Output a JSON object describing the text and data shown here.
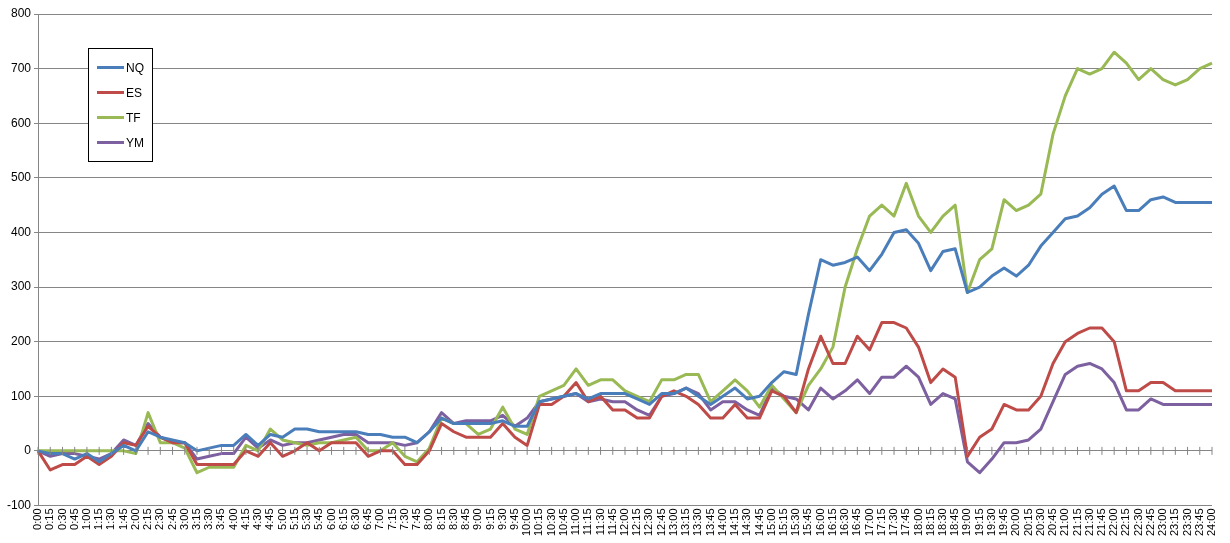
{
  "chart_data": {
    "type": "line",
    "categories": [
      "0:00",
      "0:15",
      "0:30",
      "0:45",
      "1:00",
      "1:15",
      "1:30",
      "1:45",
      "2:00",
      "2:15",
      "2:30",
      "2:45",
      "3:00",
      "3:15",
      "3:30",
      "3:45",
      "4:00",
      "4:15",
      "4:30",
      "4:45",
      "5:00",
      "5:15",
      "5:30",
      "5:45",
      "6:00",
      "6:15",
      "6:30",
      "6:45",
      "7:00",
      "7:15",
      "7:30",
      "7:45",
      "8:00",
      "8:15",
      "8:30",
      "8:45",
      "9:00",
      "9:15",
      "9:30",
      "9:45",
      "10:00",
      "10:15",
      "10:30",
      "10:45",
      "11:00",
      "11:15",
      "11:30",
      "11:45",
      "12:00",
      "12:15",
      "12:30",
      "12:45",
      "13:00",
      "13:15",
      "13:30",
      "13:45",
      "14:00",
      "14:15",
      "14:30",
      "14:45",
      "15:00",
      "15:15",
      "15:30",
      "15:45",
      "16:00",
      "16:15",
      "16:30",
      "16:45",
      "17:00",
      "17:15",
      "17:30",
      "17:45",
      "18:00",
      "18:15",
      "18:30",
      "18:45",
      "19:00",
      "19:15",
      "19:30",
      "19:45",
      "20:00",
      "20:15",
      "20:30",
      "20:45",
      "21:00",
      "21:15",
      "21:30",
      "21:45",
      "22:00",
      "22:15",
      "22:30",
      "22:45",
      "23:00",
      "23:15",
      "23:30",
      "23:45",
      "24:00"
    ],
    "series": [
      {
        "name": "NQ",
        "color": "#4a7ebb",
        "values": [
          0,
          -5,
          -5,
          -15,
          -5,
          -20,
          -5,
          10,
          0,
          35,
          25,
          20,
          15,
          0,
          5,
          10,
          10,
          30,
          10,
          30,
          25,
          40,
          40,
          35,
          35,
          35,
          35,
          30,
          30,
          25,
          25,
          15,
          35,
          60,
          50,
          50,
          50,
          50,
          55,
          45,
          45,
          90,
          95,
          100,
          105,
          95,
          105,
          105,
          105,
          95,
          85,
          105,
          105,
          115,
          100,
          85,
          100,
          115,
          95,
          100,
          125,
          145,
          140,
          250,
          350,
          340,
          345,
          355,
          330,
          360,
          400,
          405,
          380,
          330,
          365,
          370,
          290,
          300,
          320,
          335,
          320,
          340,
          375,
          400,
          425,
          430,
          445,
          470,
          485,
          440,
          440,
          460,
          465,
          455,
          455,
          455,
          455
        ]
      },
      {
        "name": "ES",
        "color": "#be4b48",
        "values": [
          0,
          -35,
          -25,
          -25,
          -10,
          -25,
          -10,
          15,
          10,
          45,
          25,
          15,
          15,
          -25,
          -25,
          -25,
          -25,
          0,
          -10,
          15,
          -10,
          0,
          15,
          0,
          15,
          15,
          15,
          -10,
          0,
          0,
          -25,
          -25,
          0,
          50,
          35,
          25,
          25,
          25,
          50,
          25,
          10,
          85,
          85,
          100,
          125,
          90,
          100,
          75,
          75,
          60,
          60,
          100,
          110,
          100,
          85,
          60,
          60,
          85,
          60,
          60,
          110,
          100,
          70,
          150,
          210,
          160,
          160,
          210,
          185,
          235,
          235,
          225,
          190,
          125,
          150,
          135,
          -10,
          25,
          40,
          85,
          75,
          75,
          100,
          160,
          200,
          215,
          225,
          225,
          200,
          110,
          110,
          125,
          125,
          110,
          110,
          110,
          110
        ]
      },
      {
        "name": "TF",
        "color": "#98b954",
        "values": [
          0,
          0,
          0,
          0,
          0,
          0,
          0,
          0,
          -5,
          70,
          15,
          15,
          5,
          -40,
          -30,
          -30,
          -30,
          10,
          0,
          40,
          20,
          15,
          10,
          15,
          15,
          20,
          25,
          0,
          0,
          15,
          -10,
          -20,
          5,
          60,
          50,
          50,
          30,
          40,
          80,
          40,
          30,
          100,
          110,
          120,
          150,
          120,
          130,
          130,
          110,
          100,
          90,
          130,
          130,
          140,
          140,
          90,
          110,
          130,
          110,
          80,
          120,
          95,
          70,
          120,
          150,
          190,
          300,
          370,
          430,
          450,
          430,
          490,
          430,
          400,
          430,
          450,
          290,
          350,
          370,
          460,
          440,
          450,
          470,
          580,
          650,
          700,
          690,
          700,
          730,
          710,
          680,
          700,
          680,
          670,
          680,
          700,
          710
        ]
      },
      {
        "name": "YM",
        "color": "#7d60a0",
        "values": [
          0,
          -10,
          -5,
          -5,
          -10,
          -15,
          -5,
          20,
          10,
          50,
          25,
          15,
          15,
          -15,
          -10,
          -5,
          -5,
          25,
          5,
          20,
          10,
          15,
          15,
          20,
          25,
          30,
          30,
          15,
          15,
          15,
          10,
          15,
          35,
          70,
          50,
          55,
          55,
          55,
          65,
          45,
          60,
          90,
          95,
          100,
          105,
          90,
          95,
          90,
          90,
          75,
          65,
          100,
          105,
          115,
          105,
          75,
          90,
          90,
          75,
          65,
          115,
          100,
          95,
          75,
          115,
          95,
          110,
          130,
          105,
          135,
          135,
          155,
          135,
          85,
          105,
          95,
          -20,
          -40,
          -15,
          15,
          15,
          20,
          40,
          90,
          140,
          155,
          160,
          150,
          125,
          75,
          75,
          95,
          85,
          85,
          85,
          85,
          85
        ]
      }
    ],
    "ylim": [
      -100,
      800
    ],
    "yticks": [
      -100,
      0,
      100,
      200,
      300,
      400,
      500,
      600,
      700,
      800
    ],
    "grid": "y",
    "legend": "top left",
    "marker": "none",
    "line_style": "solid"
  }
}
